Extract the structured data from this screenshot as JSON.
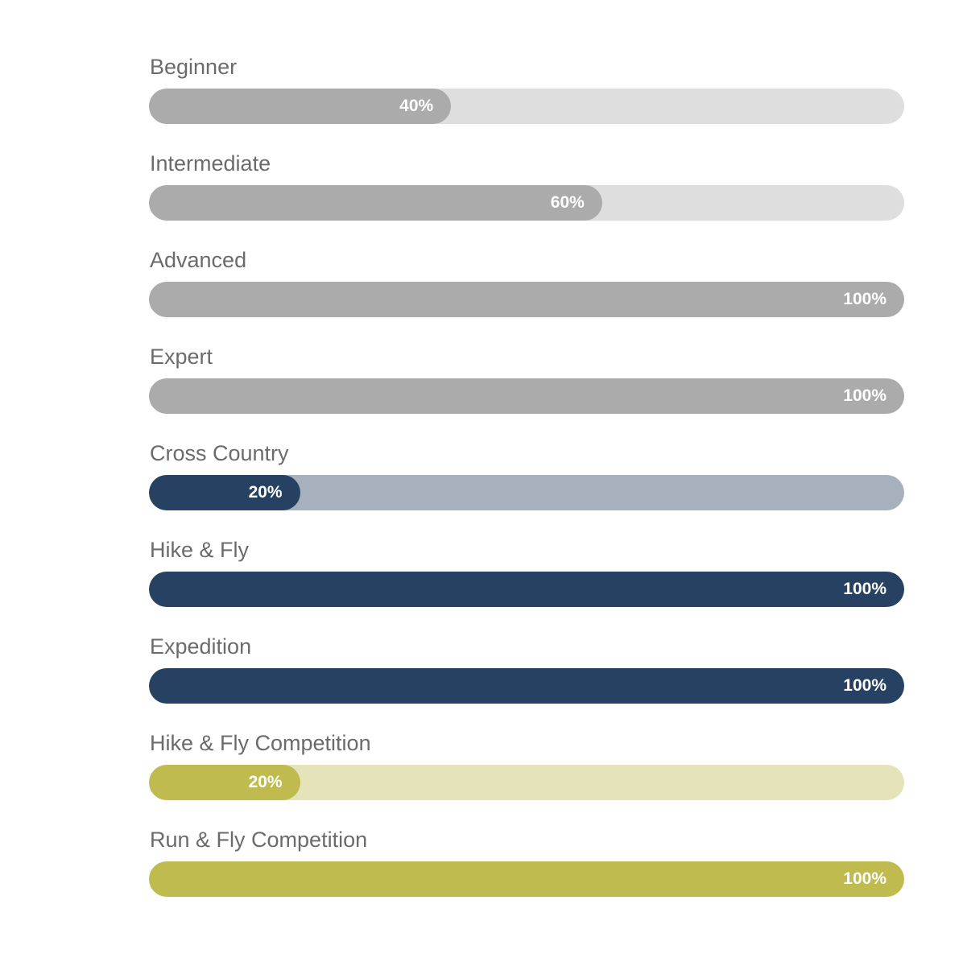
{
  "skills": [
    {
      "label": "Beginner",
      "percent_label": "40%",
      "level": 0.4,
      "fill_color": "#ababab",
      "track_color": "#dedede"
    },
    {
      "label": "Intermediate",
      "percent_label": "60%",
      "level": 0.6,
      "fill_color": "#ababab",
      "track_color": "#dedede"
    },
    {
      "label": "Advanced",
      "percent_label": "100%",
      "level": 1.0,
      "fill_color": "#ababab",
      "track_color": "#dedede"
    },
    {
      "label": "Expert",
      "percent_label": "100%",
      "level": 1.0,
      "fill_color": "#ababab",
      "track_color": "#dedede"
    },
    {
      "label": "Cross Country",
      "percent_label": "20%",
      "level": 0.2,
      "fill_color": "#264162",
      "track_color": "#a7b1bd"
    },
    {
      "label": "Hike & Fly",
      "percent_label": "100%",
      "level": 1.0,
      "fill_color": "#264162",
      "track_color": "#a7b1bd"
    },
    {
      "label": "Expedition",
      "percent_label": "100%",
      "level": 1.0,
      "fill_color": "#264162",
      "track_color": "#a7b1bd"
    },
    {
      "label": "Hike & Fly Competition",
      "percent_label": "20%",
      "level": 0.2,
      "fill_color": "#bfbb4f",
      "track_color": "#e5e3b9"
    },
    {
      "label": "Run & Fly Competition",
      "percent_label": "100%",
      "level": 1.0,
      "fill_color": "#bfbb4f",
      "track_color": "#e5e3b9"
    }
  ]
}
